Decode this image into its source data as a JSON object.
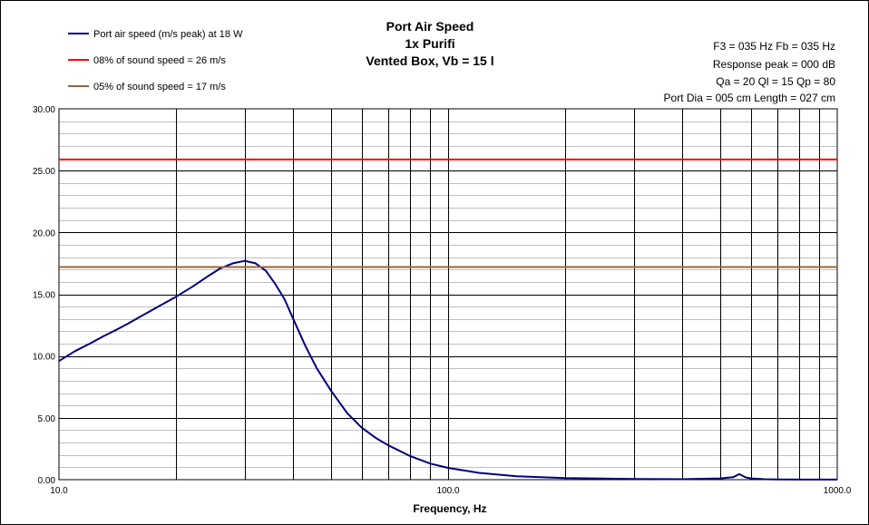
{
  "colors": {
    "series": "#000080",
    "sound_08": "#ff0000",
    "sound_05": "#996633",
    "grid_major": "#000000",
    "grid_minor": "#c0c0c0"
  },
  "chart_data": {
    "type": "line",
    "title": [
      "Port Air  Speed",
      "1x Purifi",
      "Vented Box, Vb = 15 l"
    ],
    "info": [
      "F3 = 035  Hz   Fb = 035  Hz",
      "Response peak = 000  dB",
      "Qa = 20   Ql = 15   Qp = 80",
      "Port Dia = 005  cm   Length = 027  cm"
    ],
    "xlabel": "Frequency, Hz",
    "ylabel": "",
    "x_scale": "log",
    "xlim": [
      10,
      1000
    ],
    "ylim": [
      0,
      30
    ],
    "x_tick_labels": [
      "10.0",
      "100.0",
      "1000.0"
    ],
    "y_tick_labels": [
      "0.00",
      "5.00",
      "10.00",
      "15.00",
      "20.00",
      "25.00",
      "30.00"
    ],
    "grid": true,
    "legend_position": "top-left",
    "series": [
      {
        "name": "Port air speed (m/s peak) at 18 W",
        "x": [
          10,
          11,
          12,
          13,
          14,
          15,
          16,
          18,
          20,
          22,
          24,
          26,
          28,
          30,
          32,
          34,
          36,
          38,
          40,
          43,
          46,
          50,
          55,
          60,
          65,
          70,
          80,
          90,
          100,
          120,
          150,
          200,
          300,
          400,
          500,
          540,
          560,
          580,
          600,
          650,
          700,
          800,
          1000
        ],
        "y": [
          9.6,
          10.4,
          11.0,
          11.6,
          12.1,
          12.6,
          13.1,
          14.0,
          14.8,
          15.6,
          16.4,
          17.1,
          17.5,
          17.7,
          17.5,
          16.9,
          15.8,
          14.6,
          13.0,
          10.8,
          9.0,
          7.2,
          5.4,
          4.2,
          3.4,
          2.8,
          1.9,
          1.3,
          0.95,
          0.55,
          0.28,
          0.13,
          0.05,
          0.04,
          0.1,
          0.2,
          0.45,
          0.2,
          0.1,
          0.04,
          0.02,
          0.01,
          0.01
        ]
      },
      {
        "name": "08% of sound speed =  26 m/s",
        "x": [
          10,
          1000
        ],
        "y": [
          25.9,
          25.9
        ]
      },
      {
        "name": "05% of sound speed =  17 m/s",
        "x": [
          10,
          1000
        ],
        "y": [
          17.2,
          17.2
        ]
      }
    ]
  }
}
